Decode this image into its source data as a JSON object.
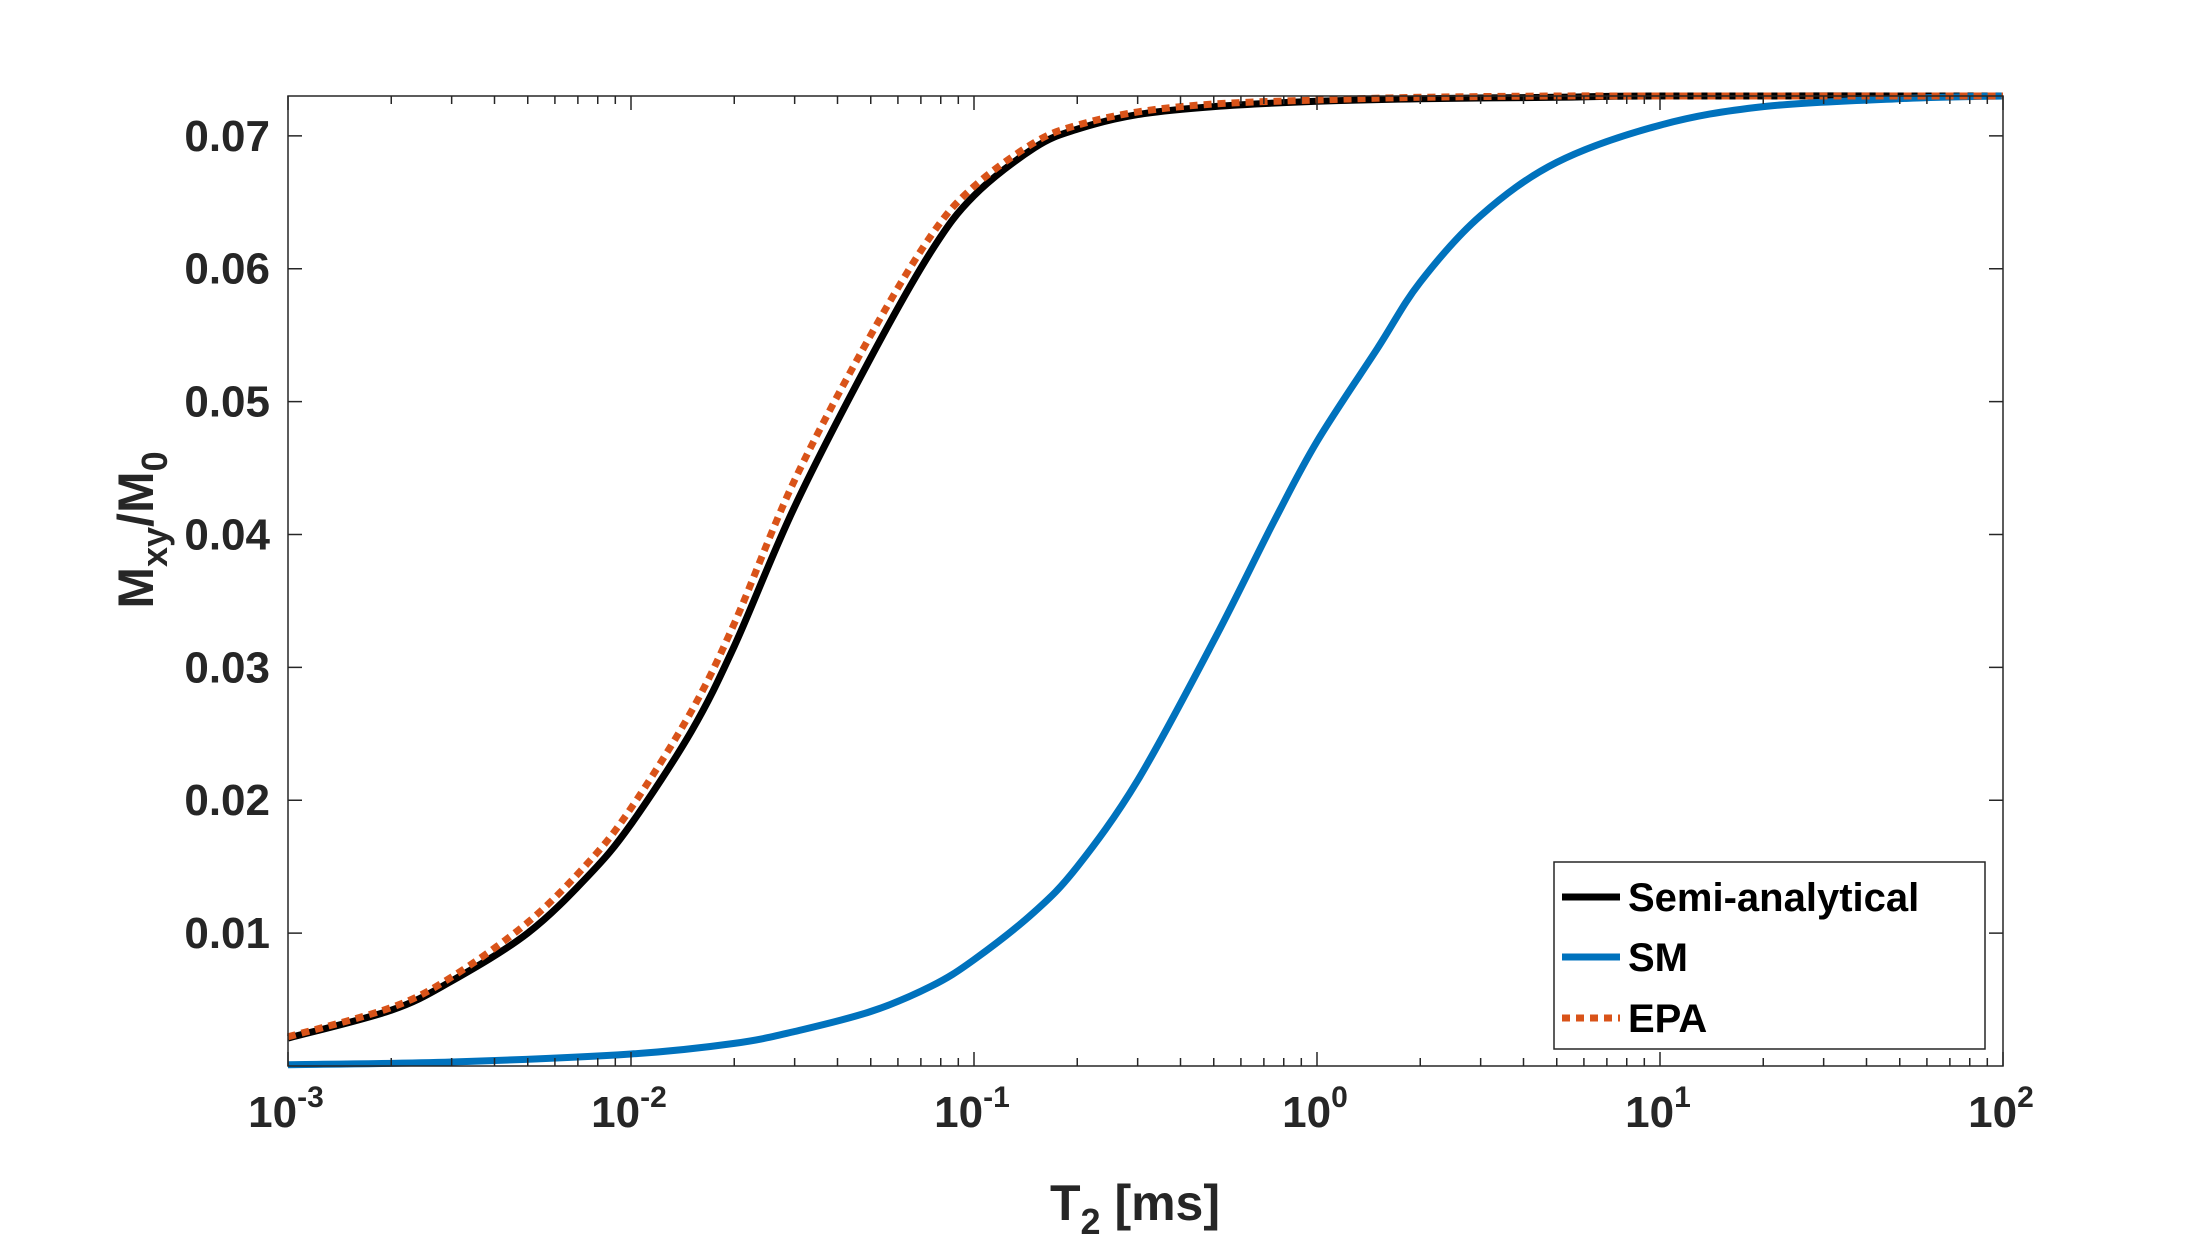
{
  "chart_data": {
    "type": "line",
    "title": "",
    "xlabel": {
      "base": "T",
      "sub": "2",
      "suffix": " [ms]"
    },
    "ylabel": {
      "p1": "M",
      "sub1": "xy",
      "p2": "/M",
      "sub2": "0"
    },
    "xscale": "log",
    "xlim": [
      0.001,
      100
    ],
    "ylim": [
      0,
      0.073
    ],
    "x_ticks": [
      {
        "value": 0.001,
        "base": "10",
        "exp": "-3"
      },
      {
        "value": 0.01,
        "base": "10",
        "exp": "-2"
      },
      {
        "value": 0.1,
        "base": "10",
        "exp": "-1"
      },
      {
        "value": 1,
        "base": "10",
        "exp": "0"
      },
      {
        "value": 10,
        "base": "10",
        "exp": "1"
      },
      {
        "value": 100,
        "base": "10",
        "exp": "2"
      }
    ],
    "y_ticks": [
      {
        "value": 0.01,
        "label": "0.01"
      },
      {
        "value": 0.02,
        "label": "0.02"
      },
      {
        "value": 0.03,
        "label": "0.03"
      },
      {
        "value": 0.04,
        "label": "0.04"
      },
      {
        "value": 0.05,
        "label": "0.05"
      },
      {
        "value": 0.06,
        "label": "0.06"
      },
      {
        "value": 0.07,
        "label": "0.07"
      }
    ],
    "grid": false,
    "legend_position": "bottom-right",
    "series": [
      {
        "name": "Semi-analytical",
        "color": "#000000",
        "style": "solid",
        "x": [
          0.001,
          0.002,
          0.003,
          0.005,
          0.0075,
          0.01,
          0.015,
          0.02,
          0.03,
          0.05,
          0.075,
          0.1,
          0.15,
          0.2,
          0.3,
          0.5,
          1,
          2,
          5,
          10,
          100
        ],
        "y": [
          0.0021,
          0.0042,
          0.0064,
          0.01,
          0.0143,
          0.0182,
          0.0252,
          0.0316,
          0.0421,
          0.0533,
          0.0613,
          0.0655,
          0.0691,
          0.0705,
          0.0716,
          0.0722,
          0.0726,
          0.0728,
          0.0729,
          0.073,
          0.073
        ]
      },
      {
        "name": "SM",
        "color": "#0072BD",
        "style": "solid",
        "x": [
          0.001,
          0.003,
          0.01,
          0.02,
          0.03,
          0.05,
          0.075,
          0.1,
          0.15,
          0.2,
          0.3,
          0.5,
          0.75,
          1,
          1.5,
          2,
          3,
          5,
          10,
          20,
          50,
          100
        ],
        "y": [
          0.0001,
          0.0003,
          0.0009,
          0.0017,
          0.0026,
          0.0041,
          0.006,
          0.008,
          0.0116,
          0.015,
          0.0215,
          0.032,
          0.041,
          0.047,
          0.054,
          0.059,
          0.064,
          0.068,
          0.0708,
          0.0722,
          0.0728,
          0.073
        ]
      },
      {
        "name": "EPA",
        "color": "#D95319",
        "style": "dotted",
        "x": [
          0.001,
          0.002,
          0.003,
          0.005,
          0.0075,
          0.01,
          0.015,
          0.02,
          0.03,
          0.05,
          0.075,
          0.1,
          0.15,
          0.2,
          0.3,
          0.5,
          1,
          2,
          5,
          10,
          100
        ],
        "y": [
          0.0022,
          0.0044,
          0.0067,
          0.0108,
          0.0153,
          0.0194,
          0.0267,
          0.0333,
          0.0441,
          0.055,
          0.0625,
          0.0662,
          0.0695,
          0.0708,
          0.0718,
          0.0724,
          0.0727,
          0.0729,
          0.073,
          0.073,
          0.073
        ]
      }
    ]
  }
}
